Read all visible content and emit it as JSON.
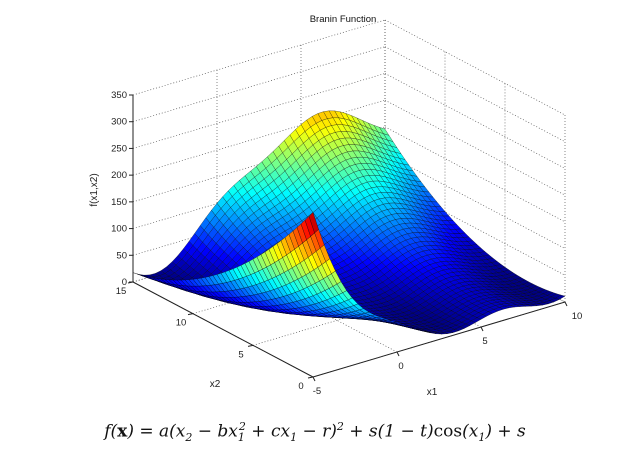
{
  "chart_data": {
    "type": "surface",
    "title": "Branin Function",
    "xlabel": "x1",
    "ylabel": "x2",
    "zlabel": "f(x1,x2)",
    "xlim": [
      -5,
      10
    ],
    "ylim": [
      0,
      15
    ],
    "zlim": [
      0,
      350
    ],
    "xticks": [
      "-5",
      "0",
      "5",
      "10"
    ],
    "yticks": [
      "0",
      "5",
      "10",
      "15"
    ],
    "zticks": [
      "0",
      "50",
      "100",
      "150",
      "200",
      "250",
      "300",
      "350"
    ],
    "grid": true,
    "colormap": "jet",
    "mesh_edges_color": "#000000"
  },
  "formula": "f(x) = a(x_2 − bx_1^2 + cx_1 − r)^2 + s(1 − t)cos(x_1) + s"
}
